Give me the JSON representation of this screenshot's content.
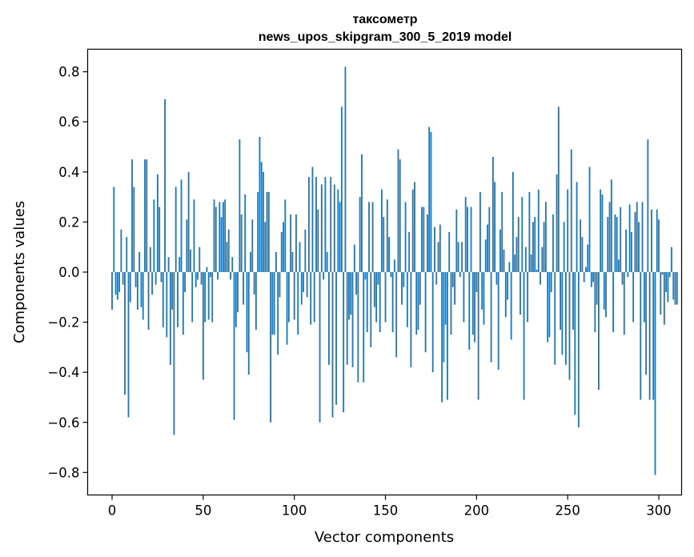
{
  "chart_data": {
    "type": "bar",
    "title": "таксометр",
    "subtitle": "news_upos_skipgram_300_5_2019 model",
    "xlabel": "Vector components",
    "ylabel": "Components values",
    "xlim": [
      -13.4,
      312.5
    ],
    "ylim": [
      -0.89,
      0.89
    ],
    "xticks": [
      0,
      50,
      100,
      150,
      200,
      250,
      300
    ],
    "yticks": [
      -0.8,
      -0.6,
      -0.4,
      -0.2,
      0.0,
      0.2,
      0.4,
      0.6,
      0.8
    ],
    "ytick_labels": [
      "−0.8",
      "−0.6",
      "−0.4",
      "−0.2",
      "0.0",
      "0.2",
      "0.4",
      "0.6",
      "0.8"
    ],
    "bar_color": "#1f77b4",
    "grid": false,
    "values": [
      -0.15,
      0.34,
      -0.09,
      -0.11,
      -0.08,
      0.17,
      -0.05,
      -0.49,
      0.14,
      -0.58,
      -0.12,
      0.45,
      0.34,
      -0.06,
      -0.15,
      0.08,
      -0.14,
      -0.19,
      0.45,
      0.45,
      -0.23,
      0.1,
      -0.09,
      0.29,
      -0.05,
      0.39,
      0.26,
      -0.04,
      -0.22,
      0.69,
      -0.26,
      0.06,
      -0.37,
      -0.15,
      -0.65,
      0.34,
      -0.22,
      0.06,
      0.37,
      -0.25,
      -0.08,
      0.21,
      0.4,
      0.09,
      -0.2,
      0.29,
      -0.06,
      -0.03,
      0.1,
      -0.05,
      -0.43,
      -0.2,
      0.02,
      -0.19,
      -0.02,
      -0.2,
      0.29,
      0.26,
      -0.03,
      0.28,
      0.22,
      0.28,
      0.29,
      0.12,
      0.17,
      -0.03,
      0.06,
      -0.59,
      -0.22,
      -0.16,
      0.53,
      0.23,
      -0.13,
      0.31,
      -0.32,
      -0.41,
      0.08,
      0.21,
      -0.09,
      -0.23,
      0.32,
      0.54,
      0.44,
      0.4,
      0.2,
      0.32,
      0.32,
      -0.6,
      -0.25,
      -0.25,
      0.08,
      -0.33,
      -0.1,
      0.16,
      0.2,
      0.29,
      -0.29,
      -0.2,
      0.23,
      0.08,
      -0.19,
      0.23,
      -0.25,
      0.12,
      -0.13,
      -0.08,
      0.17,
      -0.1,
      0.38,
      -0.21,
      0.42,
      -0.2,
      0.38,
      0.25,
      -0.6,
      0.35,
      -0.03,
      0.38,
      0.08,
      -0.37,
      0.38,
      -0.58,
      0.35,
      -0.53,
      0.33,
      0.28,
      0.66,
      -0.56,
      0.82,
      -0.37,
      -0.19,
      -0.17,
      -0.38,
      0.11,
      -0.09,
      -0.44,
      0.3,
      0.47,
      -0.44,
      -0.03,
      -0.24,
      0.28,
      -0.3,
      0.28,
      -0.14,
      -0.2,
      -0.05,
      -0.24,
      0.33,
      0.22,
      -0.2,
      0.29,
      0.14,
      -0.02,
      -0.24,
      0.05,
      -0.34,
      0.49,
      0.45,
      -0.13,
      -0.06,
      0.28,
      -0.22,
      0.16,
      -0.38,
      0.33,
      0.36,
      -0.25,
      -0.23,
      -0.13,
      0.26,
      0.26,
      -0.32,
      0.23,
      0.58,
      0.56,
      -0.4,
      0.18,
      -0.05,
      0.12,
      0.19,
      -0.52,
      -0.36,
      -0.21,
      -0.51,
      0.16,
      -0.25,
      -0.06,
      -0.13,
      0.25,
      0.12,
      -0.02,
      0.12,
      -0.2,
      0.3,
      0.26,
      -0.31,
      0.26,
      -0.25,
      -0.28,
      -0.08,
      -0.51,
      0.32,
      -0.15,
      -0.21,
      0.13,
      0.19,
      0.26,
      -0.36,
      0.46,
      0.36,
      -0.05,
      -0.39,
      0.17,
      0.32,
      0.09,
      -0.18,
      -0.11,
      0.04,
      -0.27,
      0.4,
      0.07,
      0.14,
      0.22,
      -0.17,
      0.3,
      -0.51,
      0.1,
      -0.2,
      0.32,
      0.07,
      0.2,
      0.22,
      0.01,
      0.33,
      -0.05,
      0.1,
      0.2,
      0.28,
      -0.28,
      -0.26,
      -0.08,
      0.23,
      -0.37,
      0.39,
      0.66,
      -0.23,
      -0.33,
      0.2,
      -0.37,
      0.33,
      -0.43,
      0.49,
      -0.23,
      -0.57,
      0.36,
      -0.62,
      0.21,
      0.14,
      -0.04,
      0.02,
      0.11,
      0.42,
      -0.06,
      -0.04,
      -0.24,
      -0.13,
      -0.47,
      0.33,
      0.31,
      -0.15,
      -0.18,
      0.22,
      0.28,
      0.37,
      -0.24,
      0.23,
      0.22,
      0.05,
      0.26,
      -0.05,
      -0.25,
      0.17,
      -0.02,
      0.27,
      0.16,
      -0.2,
      0.24,
      0.28,
      0.2,
      -0.51,
      0.28,
      -0.2,
      -0.41,
      0.53,
      -0.51,
      0.25,
      -0.51,
      -0.81,
      0.25,
      0.21,
      -0.17,
      -0.01,
      -0.21,
      -0.08,
      -0.12,
      -0.02,
      0.1,
      -0.11,
      -0.13,
      -0.13
    ]
  }
}
